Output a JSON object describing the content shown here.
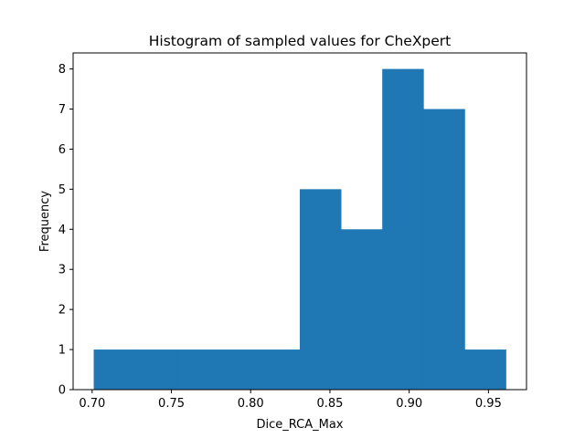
{
  "chart_data": {
    "type": "bar",
    "title": "Histogram of sampled values for CheXpert",
    "xlabel": "Dice_RCA_Max",
    "ylabel": "Frequency",
    "bin_edges": [
      0.701,
      0.727,
      0.753,
      0.779,
      0.805,
      0.831,
      0.857,
      0.883,
      0.909,
      0.935,
      0.961
    ],
    "values": [
      1,
      1,
      1,
      1,
      1,
      5,
      4,
      8,
      7,
      1
    ],
    "xlim": [
      0.688,
      0.974
    ],
    "ylim": [
      0,
      8.4
    ],
    "xticks": [
      0.7,
      0.75,
      0.8,
      0.85,
      0.9,
      0.95
    ],
    "xtick_labels": [
      "0.70",
      "0.75",
      "0.80",
      "0.85",
      "0.90",
      "0.95"
    ],
    "yticks": [
      0,
      1,
      2,
      3,
      4,
      5,
      6,
      7,
      8
    ],
    "ytick_labels": [
      "0",
      "1",
      "2",
      "3",
      "4",
      "5",
      "6",
      "7",
      "8"
    ],
    "bar_color": "#1f77b4",
    "grid": false,
    "legend": "none"
  }
}
